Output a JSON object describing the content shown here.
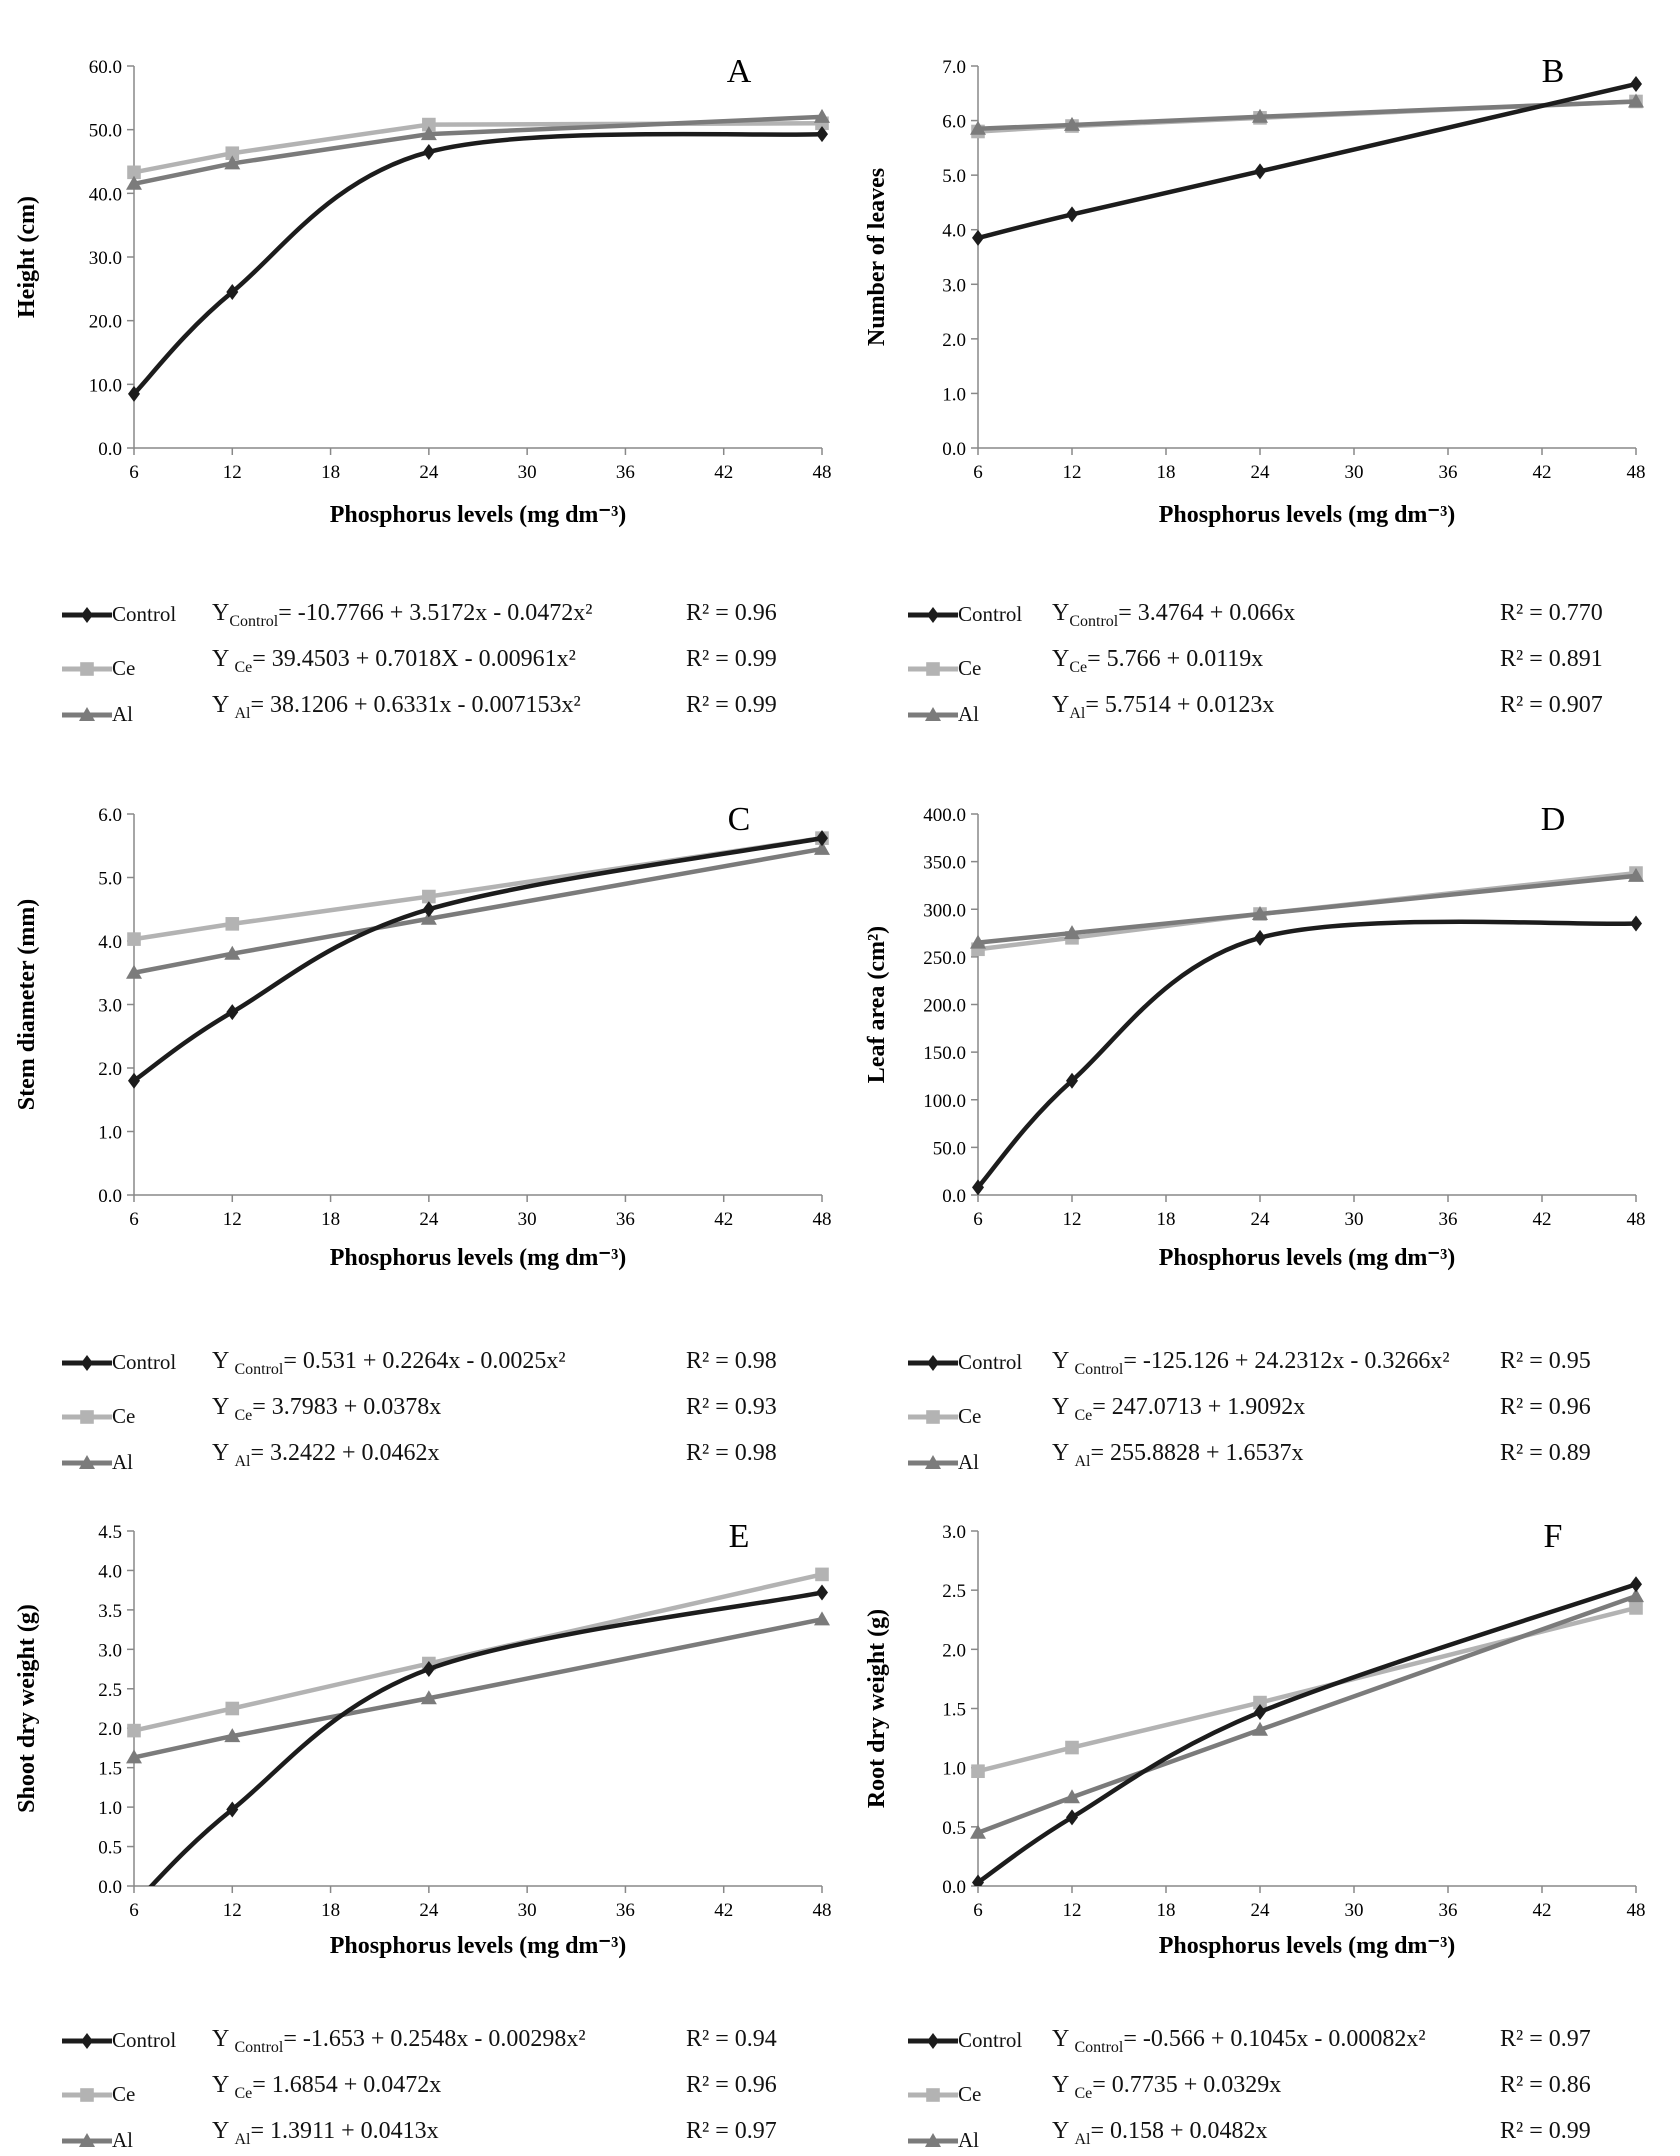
{
  "series_colors": {
    "Control": "#1c1c1c",
    "Ce": "#b3b3b3",
    "Al": "#7b7b7b"
  },
  "series_markers": {
    "Control": "diamond",
    "Ce": "square",
    "Al": "triangle"
  },
  "chart_data": [
    {
      "panel": "A",
      "type": "line",
      "xlabel": "Phosphorus levels (mg dm⁻³)",
      "ylabel": "Height (cm)",
      "x": [
        6,
        12,
        24,
        48
      ],
      "xticks": [
        6,
        12,
        18,
        24,
        30,
        36,
        42,
        48
      ],
      "ylim": [
        0,
        60
      ],
      "ystep": 10,
      "grid": false,
      "series": [
        {
          "name": "Control",
          "values": [
            8.5,
            24.5,
            46.5,
            49.3
          ]
        },
        {
          "name": "Ce",
          "values": [
            43.3,
            46.3,
            50.8,
            51.0
          ]
        },
        {
          "name": "Al",
          "values": [
            41.5,
            44.7,
            49.3,
            52.0
          ]
        }
      ],
      "legend": [
        {
          "name": "Control",
          "eq_y": "Y",
          "eq_sub": "Control",
          "eq_body": "= -10.7766 + 3.5172x - 0.0472x²",
          "r2": "R² = 0.96"
        },
        {
          "name": "Ce",
          "eq_y": "Y ",
          "eq_sub": "Ce",
          "eq_body": "= 39.4503 + 0.7018X - 0.00961x²",
          "r2": "R² = 0.99"
        },
        {
          "name": "Al",
          "eq_y": "Y ",
          "eq_sub": "Al",
          "eq_body": "= 38.1206 + 0.6331x - 0.007153x²",
          "r2": "R² = 0.99"
        }
      ]
    },
    {
      "panel": "B",
      "type": "line",
      "xlabel": "Phosphorus levels (mg dm⁻³)",
      "ylabel": "Number of leaves",
      "x": [
        6,
        12,
        24,
        48
      ],
      "xticks": [
        6,
        12,
        18,
        24,
        30,
        36,
        42,
        48
      ],
      "ylim": [
        0,
        7
      ],
      "ystep": 1,
      "grid": false,
      "series": [
        {
          "name": "Control",
          "values": [
            3.85,
            4.28,
            5.07,
            6.67
          ]
        },
        {
          "name": "Ce",
          "values": [
            5.8,
            5.9,
            6.05,
            6.35
          ]
        },
        {
          "name": "Al",
          "values": [
            5.85,
            5.92,
            6.07,
            6.35
          ]
        }
      ],
      "legend": [
        {
          "name": "Control",
          "eq_y": "Y",
          "eq_sub": "Control",
          "eq_body": "= 3.4764 + 0.066x",
          "r2": "R² = 0.770"
        },
        {
          "name": "Ce",
          "eq_y": "Y",
          "eq_sub": "Ce",
          "eq_body": "= 5.766 + 0.0119x",
          "r2": "R² = 0.891"
        },
        {
          "name": "Al",
          "eq_y": "Y",
          "eq_sub": "Al",
          "eq_body": "= 5.7514 + 0.0123x",
          "r2": "R² = 0.907"
        }
      ]
    },
    {
      "panel": "C",
      "type": "line",
      "xlabel": "Phosphorus levels (mg dm⁻³)",
      "ylabel": "Stem diameter (mm)",
      "x": [
        6,
        12,
        24,
        48
      ],
      "xticks": [
        6,
        12,
        18,
        24,
        30,
        36,
        42,
        48
      ],
      "ylim": [
        0,
        6
      ],
      "ystep": 1,
      "grid": false,
      "series": [
        {
          "name": "Control",
          "values": [
            1.8,
            2.88,
            4.5,
            5.62
          ]
        },
        {
          "name": "Ce",
          "values": [
            4.03,
            4.27,
            4.7,
            5.62
          ]
        },
        {
          "name": "Al",
          "values": [
            3.5,
            3.8,
            4.35,
            5.45
          ]
        }
      ],
      "legend": [
        {
          "name": "Control",
          "eq_y": "Y ",
          "eq_sub": "Control",
          "eq_body": "= 0.531 + 0.2264x - 0.0025x²",
          "r2": "R² = 0.98"
        },
        {
          "name": "Ce",
          "eq_y": "Y ",
          "eq_sub": "Ce",
          "eq_body": "= 3.7983 + 0.0378x",
          "r2": "R² = 0.93"
        },
        {
          "name": "Al",
          "eq_y": "Y ",
          "eq_sub": "Al",
          "eq_body": "= 3.2422 + 0.0462x",
          "r2": "R² = 0.98"
        }
      ]
    },
    {
      "panel": "D",
      "type": "line",
      "xlabel": "Phosphorus levels (mg dm⁻³)",
      "ylabel": "Leaf area (cm²)",
      "x": [
        6,
        12,
        24,
        48
      ],
      "xticks": [
        6,
        12,
        18,
        24,
        30,
        36,
        42,
        48
      ],
      "ylim": [
        0,
        400
      ],
      "ystep": 50,
      "grid": false,
      "series": [
        {
          "name": "Control",
          "values": [
            8,
            120,
            270,
            285
          ]
        },
        {
          "name": "Ce",
          "values": [
            258,
            270,
            295,
            338
          ]
        },
        {
          "name": "Al",
          "values": [
            265,
            275,
            295,
            335
          ]
        }
      ],
      "legend": [
        {
          "name": "Control",
          "eq_y": "Y ",
          "eq_sub": "Control",
          "eq_body": "= -125.126 + 24.2312x - 0.3266x²",
          "r2": "R² = 0.95"
        },
        {
          "name": "Ce",
          "eq_y": "Y ",
          "eq_sub": "Ce",
          "eq_body": "= 247.0713 + 1.9092x",
          "r2": "R² = 0.96"
        },
        {
          "name": "Al",
          "eq_y": "Y ",
          "eq_sub": "Al",
          "eq_body": "= 255.8828 + 1.6537x",
          "r2": "R² = 0.89"
        }
      ]
    },
    {
      "panel": "E",
      "type": "line",
      "xlabel": "Phosphorus levels (mg dm⁻³)",
      "ylabel": "Shoot dry weight (g)",
      "x": [
        6,
        12,
        24,
        48
      ],
      "xticks": [
        6,
        12,
        18,
        24,
        30,
        36,
        42,
        48
      ],
      "ylim": [
        0,
        4.5
      ],
      "ystep": 0.5,
      "grid": false,
      "series": [
        {
          "name": "Control",
          "values": [
            -0.23,
            0.97,
            2.75,
            3.72
          ]
        },
        {
          "name": "Ce",
          "values": [
            1.97,
            2.25,
            2.82,
            3.95
          ]
        },
        {
          "name": "Al",
          "values": [
            1.63,
            1.9,
            2.38,
            3.38
          ]
        }
      ],
      "legend": [
        {
          "name": "Control",
          "eq_y": "Y ",
          "eq_sub": "Control",
          "eq_body": "= -1.653 + 0.2548x - 0.00298x²",
          "r2": "R² = 0.94"
        },
        {
          "name": "Ce",
          "eq_y": "Y ",
          "eq_sub": "Ce",
          "eq_body": "= 1.6854 + 0.0472x",
          "r2": "R² = 0.96"
        },
        {
          "name": "Al",
          "eq_y": "Y ",
          "eq_sub": "Al",
          "eq_body": "= 1.3911 + 0.0413x",
          "r2": "R² = 0.97"
        }
      ]
    },
    {
      "panel": "F",
      "type": "line",
      "xlabel": "Phosphorus levels (mg dm⁻³)",
      "ylabel": "Root dry weight (g)",
      "x": [
        6,
        12,
        24,
        48
      ],
      "xticks": [
        6,
        12,
        18,
        24,
        30,
        36,
        42,
        48
      ],
      "ylim": [
        0,
        3
      ],
      "ystep": 0.5,
      "grid": false,
      "series": [
        {
          "name": "Control",
          "values": [
            0.03,
            0.58,
            1.47,
            2.55
          ]
        },
        {
          "name": "Ce",
          "values": [
            0.97,
            1.17,
            1.55,
            2.35
          ]
        },
        {
          "name": "Al",
          "values": [
            0.45,
            0.75,
            1.32,
            2.45
          ]
        }
      ],
      "legend": [
        {
          "name": "Control",
          "eq_y": "Y ",
          "eq_sub": "Control",
          "eq_body": "= -0.566 + 0.1045x - 0.00082x²",
          "r2": "R² = 0.97"
        },
        {
          "name": "Ce",
          "eq_y": "Y ",
          "eq_sub": "Ce",
          "eq_body": "= 0.7735 + 0.0329x",
          "r2": "R² = 0.86"
        },
        {
          "name": "Al",
          "eq_y": "Y ",
          "eq_sub": "Al",
          "eq_body": "= 0.158 + 0.0482x",
          "r2": "R² = 0.99"
        }
      ]
    }
  ]
}
